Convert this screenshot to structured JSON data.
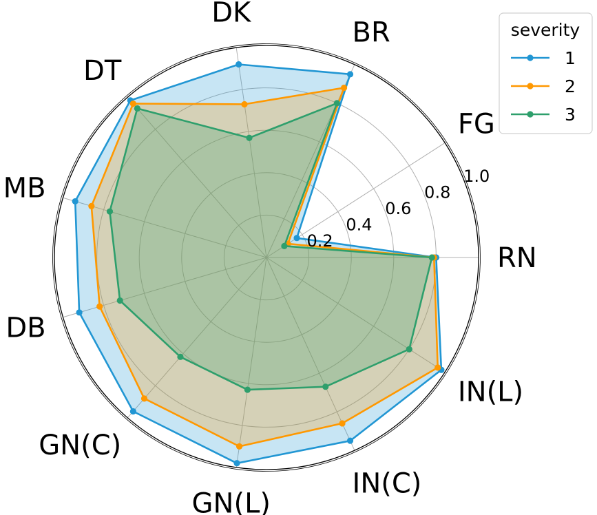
{
  "chart_data": {
    "type": "radar",
    "categories": [
      "RN",
      "FG",
      "BR",
      "DK",
      "DT",
      "MB",
      "DB",
      "GN(C)",
      "GN(L)",
      "IN(C)",
      "IN(L)"
    ],
    "rlim": [
      0,
      1.0
    ],
    "rticks": [
      0.2,
      0.4,
      0.6,
      0.8,
      1.0
    ],
    "rtick_labels": [
      "0.2",
      "0.4",
      "0.6",
      "0.8",
      "1.0"
    ],
    "grid": true,
    "legend": {
      "title": "severity",
      "placement": "top-right"
    },
    "series": [
      {
        "name": "1",
        "color": "#2196d3",
        "fill_alpha": 0.25,
        "values": [
          0.8,
          0.17,
          0.95,
          0.92,
          0.98,
          0.94,
          0.92,
          0.96,
          0.98,
          0.95,
          0.98
        ]
      },
      {
        "name": "2",
        "color": "#ff9800",
        "fill_alpha": 0.25,
        "values": [
          0.79,
          0.12,
          0.88,
          0.73,
          0.96,
          0.86,
          0.82,
          0.88,
          0.9,
          0.86,
          0.96
        ]
      },
      {
        "name": "3",
        "color": "#2e9f6c",
        "fill_alpha": 0.25,
        "values": [
          0.78,
          0.1,
          0.8,
          0.57,
          0.93,
          0.77,
          0.72,
          0.62,
          0.63,
          0.67,
          0.8
        ]
      }
    ]
  }
}
